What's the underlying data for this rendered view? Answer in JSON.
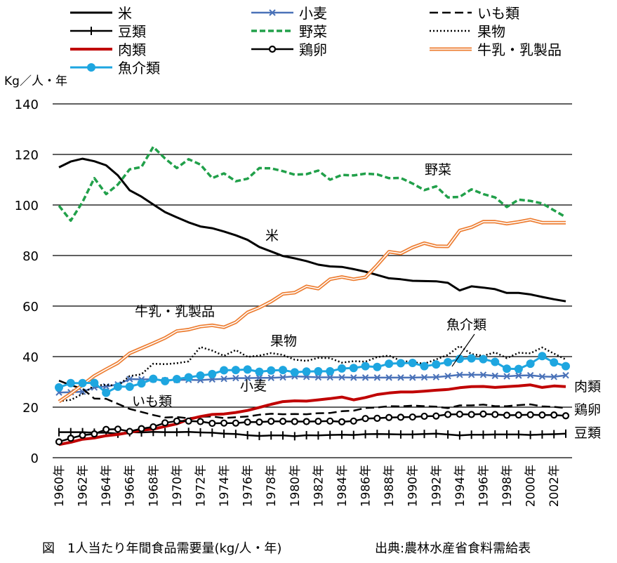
{
  "chart_data": {
    "type": "line",
    "ylabel": "Kg／人・年",
    "ylim": [
      0,
      140
    ],
    "yticks": [
      "0",
      "20",
      "40",
      "60",
      "80",
      "100",
      "120",
      "140"
    ],
    "x": [
      1960,
      1961,
      1962,
      1963,
      1964,
      1965,
      1966,
      1967,
      1968,
      1969,
      1970,
      1971,
      1972,
      1973,
      1974,
      1975,
      1976,
      1977,
      1978,
      1979,
      1980,
      1981,
      1982,
      1983,
      1984,
      1985,
      1986,
      1987,
      1988,
      1989,
      1990,
      1991,
      1992,
      1993,
      1994,
      1995,
      1996,
      1997,
      1998,
      1999,
      2000,
      2001,
      2002,
      2003
    ],
    "xticks": [
      "1960年",
      "1962年",
      "1964年",
      "1966年",
      "1968年",
      "1970年",
      "1972年",
      "1974年",
      "1976年",
      "1978年",
      "1980年",
      "1982年",
      "1984年",
      "1986年",
      "1988年",
      "1990年",
      "1992年",
      "1994年",
      "1996年",
      "1998年",
      "2000年",
      "2002年"
    ],
    "grid": true,
    "legend_position": "top",
    "caption": "図　1人当たり年間食品需要量(kg/人・年)",
    "source": "出典:農林水産省食料需給表",
    "series": [
      {
        "name": "米",
        "style": "solid",
        "color": "#000000",
        "values": [
          114.9,
          117.2,
          118.3,
          117.3,
          115.7,
          111.7,
          105.8,
          103.3,
          100.2,
          97.2,
          95.1,
          93.1,
          91.5,
          90.8,
          89.5,
          88.0,
          86.2,
          83.4,
          81.6,
          79.8,
          78.9,
          77.8,
          76.4,
          75.7,
          75.5,
          74.6,
          73.6,
          72.3,
          71.0,
          70.6,
          70.0,
          69.9,
          69.8,
          69.2,
          66.2,
          67.8,
          67.3,
          66.7,
          65.2,
          65.2,
          64.6,
          63.6,
          62.7,
          61.9
        ]
      },
      {
        "name": "小麦",
        "style": "cross",
        "color": "#4a72b8",
        "values": [
          25.8,
          25.9,
          26.1,
          27.8,
          28.2,
          29.0,
          31.1,
          31.0,
          31.0,
          30.6,
          30.8,
          30.8,
          30.7,
          31.0,
          31.2,
          31.5,
          31.5,
          31.6,
          31.6,
          31.8,
          32.2,
          32.0,
          31.8,
          31.8,
          31.8,
          31.7,
          31.7,
          31.7,
          31.7,
          31.7,
          31.7,
          31.8,
          31.9,
          32.3,
          32.8,
          32.8,
          32.8,
          32.4,
          32.2,
          32.5,
          32.6,
          32.1,
          32.0,
          32.6
        ]
      },
      {
        "name": "いも類",
        "style": "dash",
        "color": "#000000",
        "values": [
          30.5,
          28.7,
          27.3,
          23.4,
          23.3,
          21.3,
          19.3,
          18.1,
          16.9,
          15.9,
          16.1,
          15.6,
          16.2,
          16.3,
          15.7,
          16.0,
          16.3,
          17.0,
          17.4,
          17.2,
          17.3,
          17.2,
          17.6,
          17.7,
          18.4,
          18.6,
          19.7,
          19.9,
          20.4,
          20.3,
          20.6,
          20.4,
          20.2,
          19.6,
          20.7,
          20.7,
          21.0,
          20.4,
          20.4,
          20.8,
          21.1,
          20.3,
          20.1,
          19.7
        ]
      },
      {
        "name": "豆類",
        "style": "plus",
        "color": "#000000",
        "values": [
          10.1,
          10.1,
          10.1,
          9.9,
          9.9,
          9.5,
          10.1,
          10.0,
          10.2,
          10.1,
          10.1,
          10.2,
          10.0,
          9.9,
          9.5,
          9.4,
          8.9,
          8.6,
          8.8,
          8.8,
          8.5,
          8.9,
          8.8,
          9.0,
          9.1,
          9.0,
          9.3,
          9.4,
          9.3,
          9.2,
          9.2,
          9.4,
          9.5,
          9.2,
          8.8,
          9.1,
          9.1,
          9.2,
          9.2,
          9.2,
          9.0,
          9.2,
          9.3,
          9.5
        ]
      },
      {
        "name": "野菜",
        "style": "greendash",
        "color": "#21a04a",
        "values": [
          99.7,
          93.8,
          101.2,
          110.6,
          104.3,
          108.1,
          114.1,
          115.0,
          123.0,
          118.4,
          114.6,
          118.1,
          116.0,
          110.6,
          112.5,
          109.4,
          110.4,
          114.6,
          114.5,
          113.4,
          112.0,
          112.2,
          113.6,
          110.0,
          111.9,
          111.7,
          112.4,
          112.1,
          110.6,
          110.7,
          108.5,
          105.9,
          107.4,
          103.0,
          103.2,
          106.2,
          104.3,
          103.0,
          99.2,
          102.1,
          101.6,
          100.6,
          97.9,
          95.2
        ]
      },
      {
        "name": "果物",
        "style": "dot",
        "color": "#000000",
        "values": [
          22.4,
          22.9,
          25.2,
          28.6,
          28.8,
          28.5,
          32.3,
          33.0,
          37.2,
          37.0,
          37.4,
          38.1,
          43.8,
          42.4,
          40.3,
          42.6,
          39.9,
          40.4,
          41.4,
          40.7,
          38.8,
          38.3,
          39.5,
          39.4,
          37.6,
          38.2,
          38.0,
          39.8,
          40.4,
          38.4,
          37.8,
          37.2,
          38.9,
          40.7,
          44.2,
          41.0,
          40.3,
          41.7,
          39.4,
          41.5,
          41.3,
          43.6,
          41.2,
          38.9
        ]
      },
      {
        "name": "肉類",
        "style": "thickred",
        "color": "#c00000",
        "values": [
          5.2,
          6.1,
          7.3,
          7.8,
          8.7,
          9.2,
          10.0,
          10.9,
          11.3,
          12.4,
          13.4,
          15.2,
          16.3,
          17.1,
          17.3,
          17.9,
          18.7,
          19.9,
          21.1,
          22.2,
          22.5,
          22.4,
          22.9,
          23.4,
          24.0,
          22.9,
          23.8,
          25.0,
          25.6,
          26.0,
          26.0,
          26.3,
          26.7,
          27.0,
          27.7,
          28.1,
          28.2,
          27.8,
          28.1,
          28.4,
          28.8,
          27.8,
          28.4,
          28.1
        ]
      },
      {
        "name": "鶏卵",
        "style": "circle",
        "color": "#000000",
        "values": [
          6.3,
          7.7,
          8.9,
          9.4,
          11.2,
          11.3,
          10.4,
          11.5,
          12.2,
          13.8,
          14.5,
          14.5,
          14.3,
          13.6,
          13.7,
          13.7,
          14.1,
          14.1,
          14.4,
          14.4,
          14.3,
          14.3,
          14.4,
          14.5,
          14.2,
          14.5,
          15.5,
          15.6,
          15.9,
          16.0,
          16.1,
          16.4,
          16.5,
          17.1,
          17.2,
          17.1,
          17.3,
          17.1,
          16.8,
          16.9,
          17.0,
          16.9,
          16.9,
          16.6
        ]
      },
      {
        "name": "牛乳・乳製品",
        "style": "doubleorange",
        "color": "#ed7d31",
        "values": [
          22.2,
          25.4,
          28.8,
          32.4,
          35.0,
          37.5,
          41.3,
          43.3,
          45.3,
          47.4,
          50.1,
          50.7,
          51.9,
          52.4,
          51.6,
          53.6,
          57.5,
          59.4,
          61.8,
          64.8,
          65.3,
          67.8,
          66.9,
          70.6,
          71.5,
          70.6,
          71.4,
          76.2,
          81.5,
          80.8,
          83.2,
          84.9,
          83.7,
          83.6,
          89.9,
          91.2,
          93.4,
          93.4,
          92.6,
          93.3,
          94.2,
          93.0,
          93.0,
          93.0
        ]
      },
      {
        "name": "魚介類",
        "style": "bluecircle",
        "color": "#1ea6e0",
        "values": [
          27.8,
          29.5,
          29.5,
          29.6,
          25.7,
          28.1,
          28.1,
          29.4,
          31.2,
          30.3,
          31.1,
          31.8,
          32.5,
          33.1,
          34.6,
          34.7,
          34.9,
          34.0,
          34.5,
          34.7,
          33.8,
          34.1,
          34.2,
          34.2,
          35.3,
          35.5,
          36.2,
          35.9,
          37.2,
          37.4,
          37.5,
          36.2,
          36.9,
          37.8,
          39.1,
          39.3,
          39.0,
          37.9,
          35.2,
          35.1,
          37.2,
          40.2,
          37.7,
          36.2
        ]
      }
    ],
    "annotations": [
      "野菜",
      "米",
      "牛乳・乳製品",
      "果物",
      "魚介類",
      "小麦",
      "いも類",
      "肉類",
      "鶏卵",
      "豆類"
    ]
  }
}
